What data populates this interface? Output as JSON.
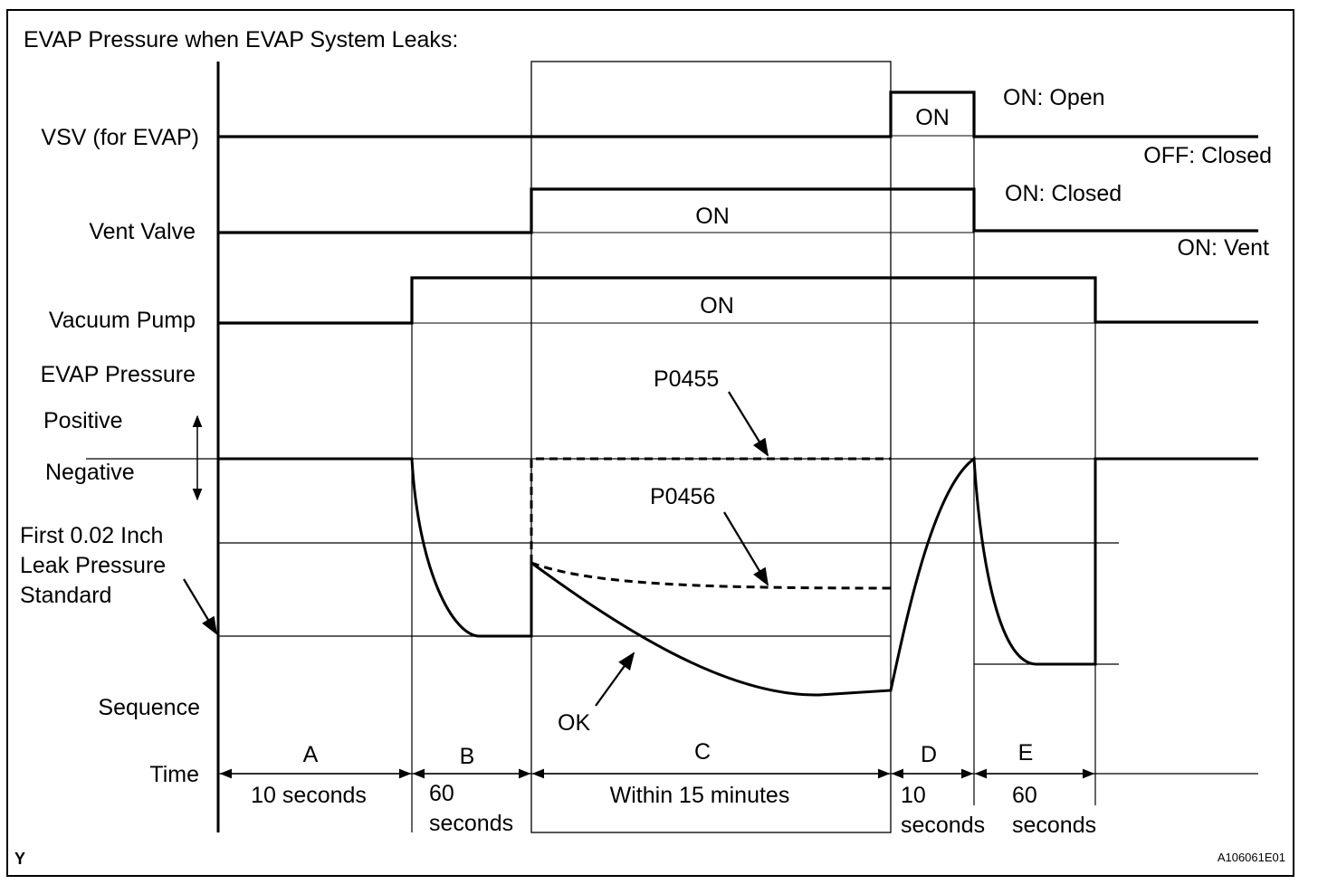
{
  "title": "EVAP Pressure when EVAP System Leaks:",
  "signals": {
    "vsv": "VSV (for EVAP)",
    "vent": "Vent Valve",
    "pump": "Vacuum Pump",
    "pressure": "EVAP Pressure",
    "positive": "Positive",
    "negative": "Negative",
    "leak_std": [
      "First 0.02 Inch",
      "Leak Pressure",
      "Standard"
    ],
    "sequence": "Sequence",
    "time": "Time"
  },
  "states": {
    "vsv_on": "ON",
    "vent_on": "ON",
    "pump_on": "ON",
    "vsv_open": "ON: Open",
    "vsv_closed": "OFF: Closed",
    "vent_closed": "ON: Closed",
    "vent_vent": "ON: Vent"
  },
  "curves": {
    "p0455": "P0455",
    "p0456": "P0456",
    "ok": "OK"
  },
  "sequence": [
    {
      "letter": "A",
      "duration": [
        "10 seconds"
      ]
    },
    {
      "letter": "B",
      "duration": [
        "60",
        "seconds"
      ]
    },
    {
      "letter": "C",
      "duration": [
        "Within 15 minutes"
      ]
    },
    {
      "letter": "D",
      "duration": [
        "10",
        "seconds"
      ]
    },
    {
      "letter": "E",
      "duration": [
        "60",
        "seconds"
      ]
    }
  ],
  "footer": {
    "left": "Y",
    "right": "A106061E01"
  }
}
